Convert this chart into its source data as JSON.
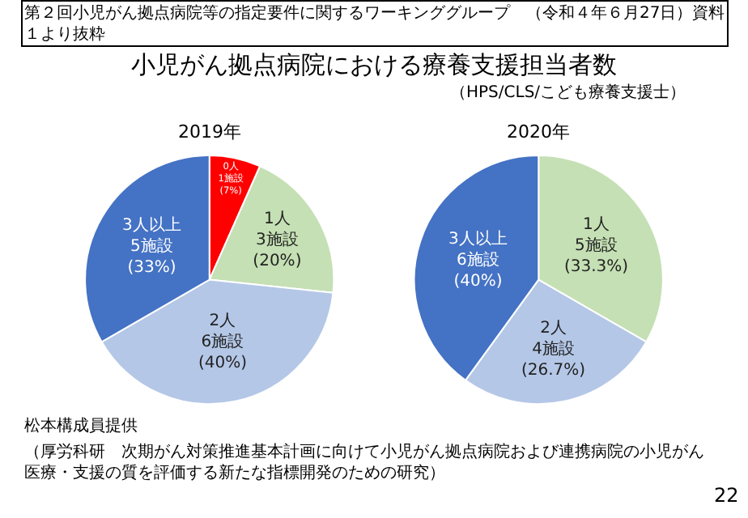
{
  "chart_data": [
    {
      "type": "pie",
      "title": "2019年",
      "categories": [
        "0人",
        "1人",
        "2人",
        "3人以上"
      ],
      "values": [
        1,
        3,
        6,
        5
      ],
      "value_labels": [
        "1施設 (7%)",
        "3施設 (20%)",
        "6施設 (40%)",
        "5施設 (33%)"
      ],
      "colors": [
        "#ff0000",
        "#c5e0b4",
        "#b4c7e7",
        "#4472c4"
      ],
      "legend": false,
      "annotations": [
        "第２回小児がん拠点病院等の指定要件に関するワーキンググループ　（令和４年６月27日）資料１より抜粋",
        "小児がん拠点病院における療養支援担当者数",
        "（HPS/CLS/こども療養支援士）",
        "松本構成員提供",
        "（厚労科研　次期がん対策推進基本計画に向けて小児がん拠点病院および連携病院の小児がん医療・支援の質を評価する新たな指標開発のための研究）",
        "22"
      ]
    },
    {
      "type": "pie",
      "title": "2020年",
      "categories": [
        "1人",
        "2人",
        "3人以上"
      ],
      "values": [
        5,
        4,
        6
      ],
      "value_labels": [
        "5施設 (33.3%)",
        "4施設 (26.7%)",
        "6施設 (40%)"
      ],
      "colors": [
        "#c5e0b4",
        "#b4c7e7",
        "#4472c4"
      ],
      "legend": false
    }
  ]
}
